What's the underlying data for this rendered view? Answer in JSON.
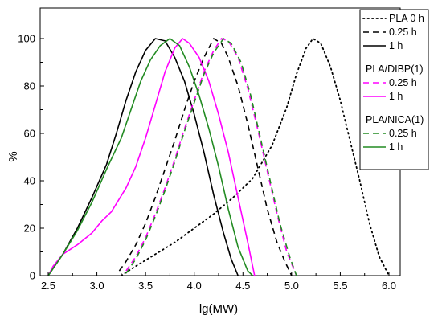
{
  "chart_data": {
    "type": "line",
    "xlabel": "lg(MW)",
    "ylabel": "%",
    "xlim": [
      2.4,
      6.1
    ],
    "ylim": [
      0,
      112
    ],
    "x_ticks": [
      "2.5",
      "3.0",
      "3.5",
      "4.0",
      "4.5",
      "5.0",
      "5.5",
      "6.0"
    ],
    "y_ticks": [
      "0",
      "20",
      "40",
      "60",
      "80",
      "100"
    ],
    "grid": false,
    "legend_position": "top-right",
    "legend_groups": [
      {
        "title": "",
        "entries": [
          0,
          1,
          2
        ]
      },
      {
        "title": "PLA/DIBP(1)",
        "entries": [
          3,
          4
        ]
      },
      {
        "title": "PLA/NICA(1)",
        "entries": [
          5,
          6
        ]
      }
    ],
    "series": [
      {
        "name": "PLA 0 h",
        "color": "#000000",
        "dash": "dotted",
        "points": [
          [
            3.25,
            0
          ],
          [
            3.4,
            4
          ],
          [
            3.6,
            9
          ],
          [
            3.8,
            14
          ],
          [
            4.0,
            20
          ],
          [
            4.2,
            26
          ],
          [
            4.4,
            33
          ],
          [
            4.6,
            41
          ],
          [
            4.8,
            55
          ],
          [
            4.95,
            71
          ],
          [
            5.05,
            85
          ],
          [
            5.15,
            96
          ],
          [
            5.22,
            100
          ],
          [
            5.3,
            98
          ],
          [
            5.4,
            88
          ],
          [
            5.5,
            74
          ],
          [
            5.6,
            57
          ],
          [
            5.7,
            40
          ],
          [
            5.8,
            22
          ],
          [
            5.9,
            8
          ],
          [
            6.0,
            0
          ]
        ]
      },
      {
        "name": "0.25 h",
        "color": "#000000",
        "dash": "dashed",
        "points": [
          [
            3.23,
            2
          ],
          [
            3.3,
            6
          ],
          [
            3.4,
            13
          ],
          [
            3.5,
            22
          ],
          [
            3.6,
            33
          ],
          [
            3.7,
            45
          ],
          [
            3.8,
            57
          ],
          [
            3.9,
            70
          ],
          [
            4.0,
            82
          ],
          [
            4.1,
            92
          ],
          [
            4.2,
            100
          ],
          [
            4.28,
            98
          ],
          [
            4.35,
            92
          ],
          [
            4.45,
            80
          ],
          [
            4.55,
            64
          ],
          [
            4.65,
            46
          ],
          [
            4.75,
            28
          ],
          [
            4.85,
            14
          ],
          [
            4.93,
            6
          ],
          [
            5.0,
            0
          ]
        ]
      },
      {
        "name": "1 h",
        "color": "#000000",
        "dash": "solid",
        "points": [
          [
            2.5,
            0
          ],
          [
            2.55,
            3
          ],
          [
            2.65,
            9
          ],
          [
            2.8,
            20
          ],
          [
            2.95,
            33
          ],
          [
            3.1,
            47
          ],
          [
            3.2,
            60
          ],
          [
            3.3,
            74
          ],
          [
            3.4,
            86
          ],
          [
            3.5,
            95
          ],
          [
            3.6,
            100
          ],
          [
            3.7,
            99
          ],
          [
            3.8,
            92
          ],
          [
            3.9,
            82
          ],
          [
            4.0,
            68
          ],
          [
            4.1,
            52
          ],
          [
            4.2,
            34
          ],
          [
            4.3,
            18
          ],
          [
            4.38,
            7
          ],
          [
            4.45,
            0
          ]
        ]
      },
      {
        "name": "0.25 h",
        "color": "#ff00ff",
        "dash": "dashed",
        "points": [
          [
            3.3,
            2
          ],
          [
            3.4,
            8
          ],
          [
            3.5,
            16
          ],
          [
            3.6,
            26
          ],
          [
            3.7,
            37
          ],
          [
            3.8,
            49
          ],
          [
            3.9,
            62
          ],
          [
            4.0,
            74
          ],
          [
            4.1,
            86
          ],
          [
            4.2,
            95
          ],
          [
            4.28,
            100
          ],
          [
            4.35,
            99
          ],
          [
            4.45,
            92
          ],
          [
            4.55,
            79
          ],
          [
            4.65,
            62
          ],
          [
            4.75,
            44
          ],
          [
            4.85,
            26
          ],
          [
            4.95,
            10
          ],
          [
            5.05,
            0
          ]
        ]
      },
      {
        "name": "1 h",
        "color": "#ff00ff",
        "dash": "solid",
        "points": [
          [
            2.5,
            0
          ],
          [
            2.55,
            4
          ],
          [
            2.65,
            9
          ],
          [
            2.8,
            13
          ],
          [
            2.95,
            18
          ],
          [
            3.05,
            23
          ],
          [
            3.15,
            27
          ],
          [
            3.3,
            37
          ],
          [
            3.4,
            46
          ],
          [
            3.5,
            58
          ],
          [
            3.6,
            72
          ],
          [
            3.7,
            86
          ],
          [
            3.8,
            96
          ],
          [
            3.88,
            100
          ],
          [
            3.95,
            98
          ],
          [
            4.05,
            92
          ],
          [
            4.15,
            82
          ],
          [
            4.25,
            68
          ],
          [
            4.35,
            52
          ],
          [
            4.45,
            33
          ],
          [
            4.55,
            14
          ],
          [
            4.62,
            0
          ]
        ]
      },
      {
        "name": "0.25 h",
        "color": "#228b22",
        "dash": "dashed",
        "points": [
          [
            3.3,
            1
          ],
          [
            3.4,
            7
          ],
          [
            3.5,
            15
          ],
          [
            3.6,
            25
          ],
          [
            3.7,
            36
          ],
          [
            3.8,
            48
          ],
          [
            3.9,
            61
          ],
          [
            4.0,
            73
          ],
          [
            4.1,
            85
          ],
          [
            4.2,
            94
          ],
          [
            4.3,
            100
          ],
          [
            4.38,
            98
          ],
          [
            4.48,
            90
          ],
          [
            4.58,
            76
          ],
          [
            4.68,
            58
          ],
          [
            4.78,
            40
          ],
          [
            4.88,
            22
          ],
          [
            4.98,
            8
          ],
          [
            5.05,
            0
          ]
        ]
      },
      {
        "name": "1 h",
        "color": "#228b22",
        "dash": "solid",
        "points": [
          [
            2.5,
            0
          ],
          [
            2.55,
            3
          ],
          [
            2.65,
            9
          ],
          [
            2.8,
            19
          ],
          [
            2.95,
            31
          ],
          [
            3.1,
            45
          ],
          [
            3.25,
            58
          ],
          [
            3.35,
            70
          ],
          [
            3.45,
            82
          ],
          [
            3.55,
            91
          ],
          [
            3.65,
            97
          ],
          [
            3.75,
            100
          ],
          [
            3.85,
            97
          ],
          [
            3.95,
            88
          ],
          [
            4.05,
            76
          ],
          [
            4.15,
            62
          ],
          [
            4.25,
            46
          ],
          [
            4.35,
            28
          ],
          [
            4.45,
            12
          ],
          [
            4.55,
            2
          ],
          [
            4.6,
            0
          ]
        ]
      }
    ]
  }
}
